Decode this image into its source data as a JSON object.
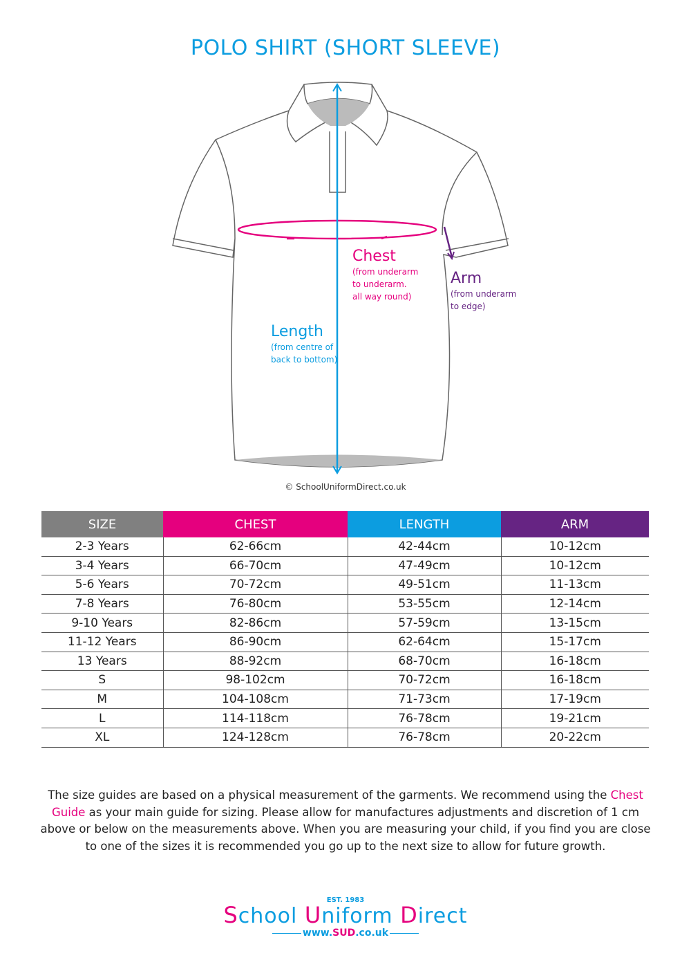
{
  "title": "POLO SHIRT (SHORT SLEEVE)",
  "colors": {
    "chest": "#e5007e",
    "length": "#0c9de0",
    "arm": "#662483",
    "size": "#808080"
  },
  "labels": {
    "chest": {
      "title": "Chest",
      "lines": [
        "(from underarm",
        "to underarm.",
        "all way round)"
      ]
    },
    "arm": {
      "title": "Arm",
      "lines": [
        "(from underarm",
        "to edge)"
      ]
    },
    "length": {
      "title": "Length",
      "lines": [
        "(from centre of",
        "back to bottom)"
      ]
    }
  },
  "copyright": "© SchoolUniformDirect.co.uk",
  "table": {
    "headers": [
      "SIZE",
      "CHEST",
      "LENGTH",
      "ARM"
    ],
    "rows": [
      [
        "2-3 Years",
        "62-66cm",
        "42-44cm",
        "10-12cm"
      ],
      [
        "3-4 Years",
        "66-70cm",
        "47-49cm",
        "10-12cm"
      ],
      [
        "5-6 Years",
        "70-72cm",
        "49-51cm",
        "11-13cm"
      ],
      [
        "7-8 Years",
        "76-80cm",
        "53-55cm",
        "12-14cm"
      ],
      [
        "9-10 Years",
        "82-86cm",
        "57-59cm",
        "13-15cm"
      ],
      [
        "11-12 Years",
        "86-90cm",
        "62-64cm",
        "15-17cm"
      ],
      [
        "13 Years",
        "88-92cm",
        "68-70cm",
        "16-18cm"
      ],
      [
        "S",
        "98-102cm",
        "70-72cm",
        "16-18cm"
      ],
      [
        "M",
        "104-108cm",
        "71-73cm",
        "17-19cm"
      ],
      [
        "L",
        "114-118cm",
        "76-78cm",
        "19-21cm"
      ],
      [
        "XL",
        "124-128cm",
        "76-78cm",
        "20-22cm"
      ]
    ]
  },
  "note": {
    "before": "The size guides are based on a physical measurement of the garments. We recommend using the ",
    "highlight": "Chest Guide",
    "after": " as your main guide for sizing. Please allow for manufactures adjustments and discretion of  1 cm above or below on the measurements above. When you are measuring your child, if you find you are close to one of the sizes it is recommended you go up to the next size to allow for future growth."
  },
  "logo": {
    "est": "EST. 1983",
    "brand": "School Uniform Direct",
    "url": "www.SUD.co.uk"
  }
}
